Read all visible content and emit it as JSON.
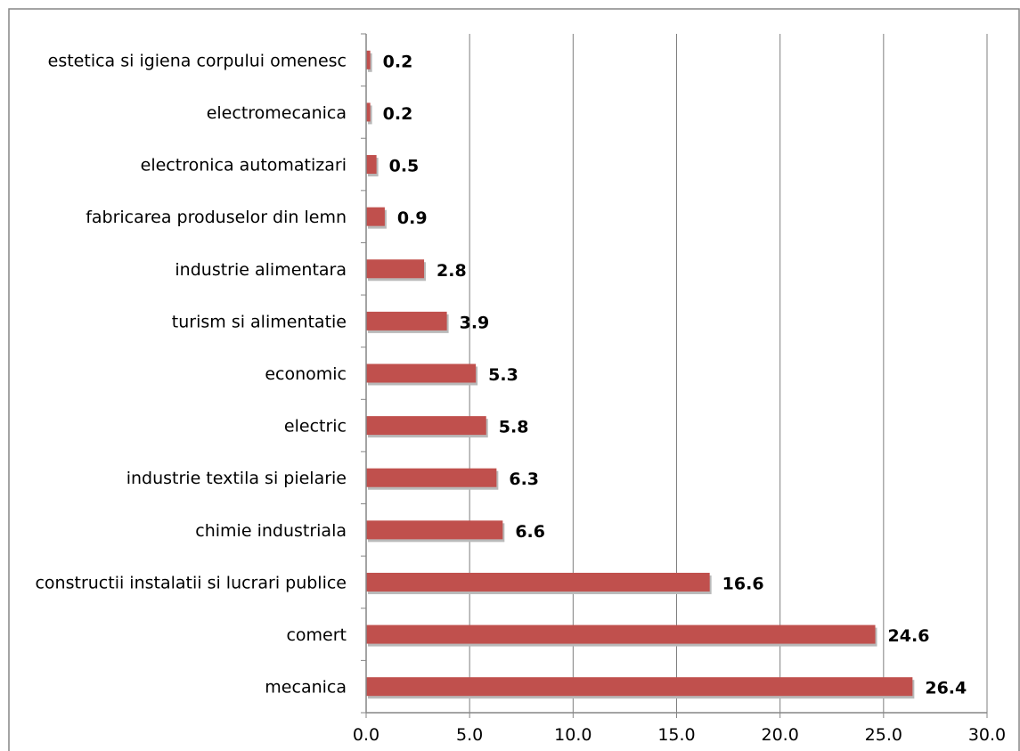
{
  "chart_data": {
    "type": "bar",
    "orientation": "horizontal",
    "categories": [
      "estetica si igiena corpului omenesc",
      "electromecanica",
      "electronica automatizari",
      "fabricarea produselor din lemn",
      "industrie alimentara",
      "turism si alimentatie",
      "economic",
      "electric",
      "industrie textila si pielarie",
      "chimie industriala",
      "constructii instalatii si lucrari publice",
      "comert",
      "mecanica"
    ],
    "values": [
      0.2,
      0.2,
      0.5,
      0.9,
      2.8,
      3.9,
      5.3,
      5.8,
      6.3,
      6.6,
      16.6,
      24.6,
      26.4
    ],
    "data_labels": [
      "0.2",
      "0.2",
      "0.5",
      "0.9",
      "2.8",
      "3.9",
      "5.3",
      "5.8",
      "6.3",
      "6.6",
      "16.6",
      "24.6",
      "26.4"
    ],
    "x_ticks": [
      "0.0",
      "5.0",
      "10.0",
      "15.0",
      "20.0",
      "25.0",
      "30.0"
    ],
    "xlim": [
      0,
      30
    ],
    "title": "",
    "xlabel": "",
    "ylabel": "",
    "grid": "vertical",
    "legend": "none",
    "colors": {
      "bar": "#c0504d",
      "gridline": "#7f7f7f",
      "axis": "#868686",
      "border": "#868686"
    }
  }
}
